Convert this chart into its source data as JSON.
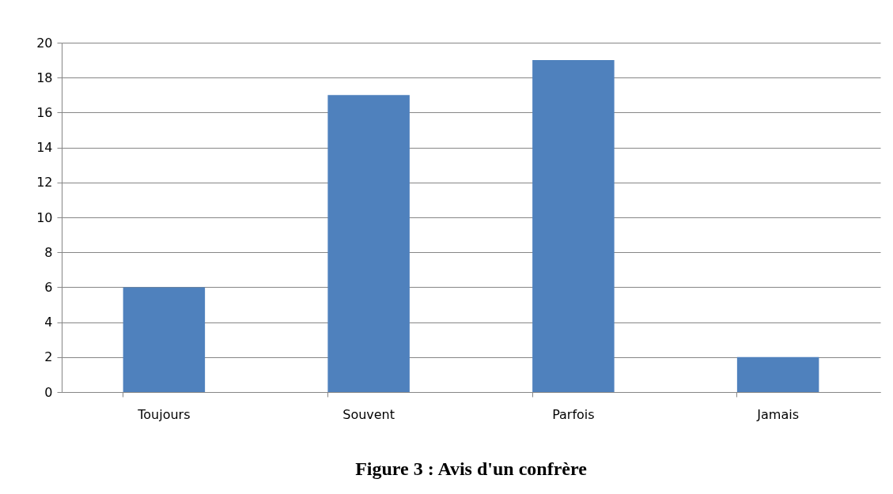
{
  "chart_data": {
    "type": "bar",
    "title": "Figure 3 : Avis d'un confrère",
    "categories": [
      "Toujours",
      "Souvent",
      "Parfois",
      "Jamais"
    ],
    "values": [
      6,
      17,
      19,
      2
    ],
    "color": "#4f81bd",
    "ylim": [
      0,
      20
    ],
    "yticks": [
      0,
      2,
      4,
      6,
      8,
      10,
      12,
      14,
      16,
      18,
      20
    ],
    "grid": "y"
  }
}
